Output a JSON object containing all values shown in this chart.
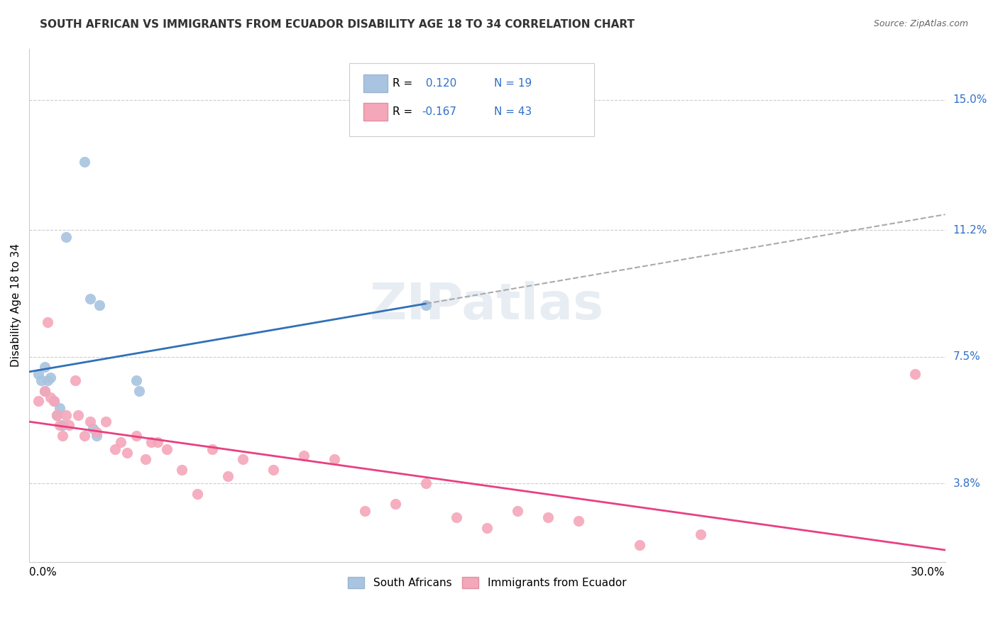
{
  "title": "SOUTH AFRICAN VS IMMIGRANTS FROM ECUADOR DISABILITY AGE 18 TO 34 CORRELATION CHART",
  "source": "Source: ZipAtlas.com",
  "xlabel_bottom_left": "0.0%",
  "xlabel_bottom_right": "30.0%",
  "ylabel": "Disability Age 18 to 34",
  "ytick_labels": [
    "3.8%",
    "7.5%",
    "11.2%",
    "15.0%"
  ],
  "ytick_values": [
    3.8,
    7.5,
    11.2,
    15.0
  ],
  "xmin": 0.0,
  "xmax": 30.0,
  "ymin": 1.5,
  "ymax": 16.5,
  "legend_r1_prefix": "R = ",
  "legend_r1_val": " 0.120",
  "legend_n1": "N = 19",
  "legend_r2_prefix": "R = ",
  "legend_r2_val": "-0.167",
  "legend_n2": "N = 43",
  "color_blue": "#a8c4e0",
  "color_pink": "#f4a7b9",
  "line_blue": "#3070b8",
  "line_pink": "#e84080",
  "watermark": "ZIPatlas",
  "south_african_x": [
    0.5,
    1.2,
    2.0,
    2.3,
    0.3,
    0.4,
    0.5,
    0.6,
    0.7,
    0.8,
    0.9,
    1.0,
    1.1,
    2.1,
    2.2,
    3.5,
    3.6,
    13.0,
    1.8
  ],
  "south_african_y": [
    7.2,
    11.0,
    9.2,
    9.0,
    7.0,
    6.8,
    6.5,
    6.8,
    6.9,
    6.2,
    5.8,
    6.0,
    5.5,
    5.4,
    5.2,
    6.8,
    6.5,
    9.0,
    13.2
  ],
  "ecuador_x": [
    0.3,
    0.5,
    0.6,
    0.7,
    0.8,
    0.9,
    1.0,
    1.1,
    1.2,
    1.3,
    1.5,
    1.6,
    1.8,
    2.0,
    2.2,
    2.5,
    2.8,
    3.0,
    3.2,
    3.5,
    3.8,
    4.0,
    4.2,
    4.5,
    5.0,
    5.5,
    6.0,
    6.5,
    7.0,
    8.0,
    9.0,
    10.0,
    11.0,
    12.0,
    13.0,
    14.0,
    15.0,
    16.0,
    17.0,
    18.0,
    20.0,
    22.0,
    29.0
  ],
  "ecuador_y": [
    6.2,
    6.5,
    8.5,
    6.3,
    6.2,
    5.8,
    5.5,
    5.2,
    5.8,
    5.5,
    6.8,
    5.8,
    5.2,
    5.6,
    5.3,
    5.6,
    4.8,
    5.0,
    4.7,
    5.2,
    4.5,
    5.0,
    5.0,
    4.8,
    4.2,
    3.5,
    4.8,
    4.0,
    4.5,
    4.2,
    4.6,
    4.5,
    3.0,
    3.2,
    3.8,
    2.8,
    2.5,
    3.0,
    2.8,
    2.7,
    2.0,
    2.3,
    7.0
  ]
}
